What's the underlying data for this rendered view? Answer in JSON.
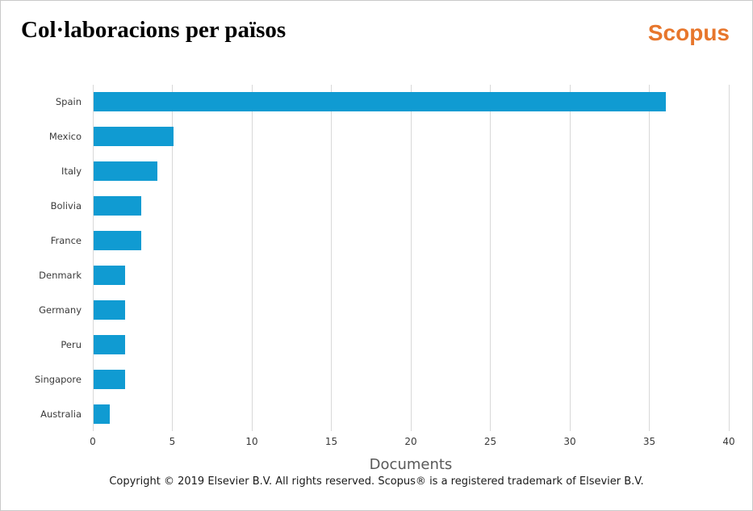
{
  "header": {
    "title": "Col·laboracions per països",
    "logo_text": "Scopus",
    "logo_color": "#e7762c"
  },
  "chart_data": {
    "type": "bar",
    "orientation": "horizontal",
    "title": "Col·laboracions per països",
    "categories": [
      "Spain",
      "Mexico",
      "Italy",
      "Bolivia",
      "France",
      "Denmark",
      "Germany",
      "Peru",
      "Singapore",
      "Australia"
    ],
    "values": [
      36,
      5,
      4,
      3,
      3,
      2,
      2,
      2,
      2,
      1
    ],
    "xlabel": "Documents",
    "ylabel": "",
    "xticks": [
      0,
      5,
      10,
      15,
      20,
      25,
      30,
      35,
      40
    ],
    "xlim": [
      0,
      40
    ],
    "grid": "vertical-only",
    "legend": "none",
    "bar_color": "#109bd2",
    "gridline_color": "#d8d8d8",
    "tick_label_color": "#3a3a3a"
  },
  "footer": {
    "copyright": "Copyright © 2019 Elsevier B.V. All rights reserved. Scopus® is a registered trademark of Elsevier B.V."
  }
}
